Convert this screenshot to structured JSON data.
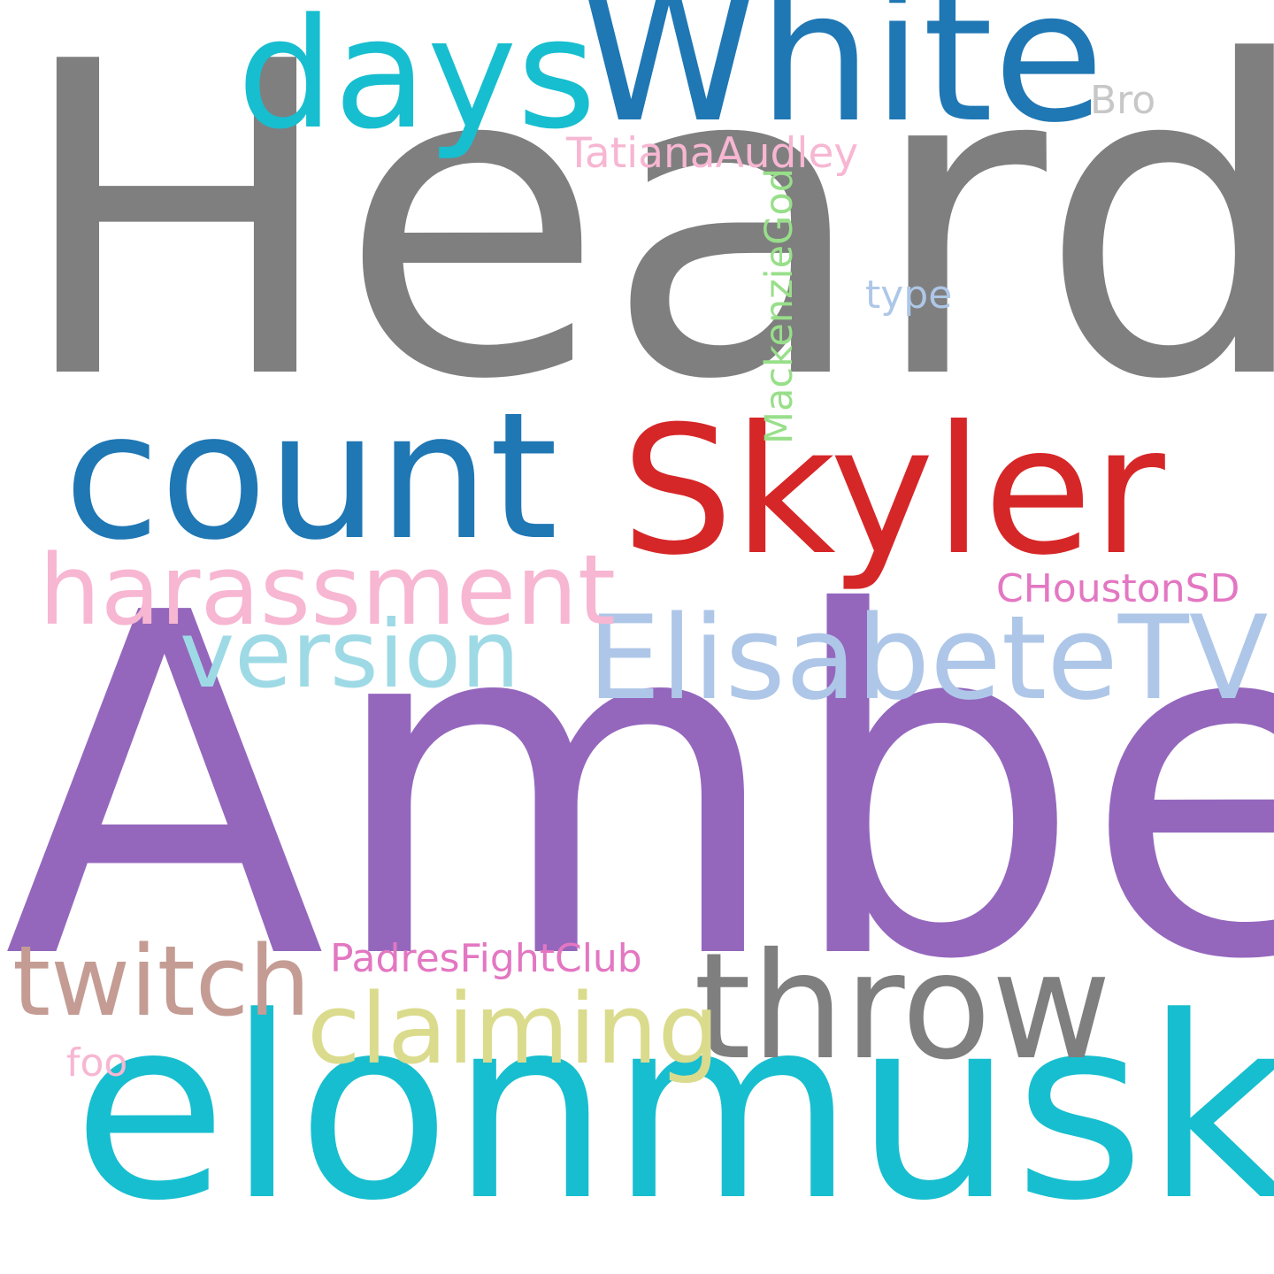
{
  "words": [
    {
      "key": "heard",
      "text": "Heard",
      "color": "#7f7f7f"
    },
    {
      "key": "amber",
      "text": "Amber",
      "color": "#9467bd"
    },
    {
      "key": "elonmusk",
      "text": "elonmusk",
      "color": "#17becf"
    },
    {
      "key": "white",
      "text": "White",
      "color": "#1f77b4"
    },
    {
      "key": "days",
      "text": "days",
      "color": "#17becf"
    },
    {
      "key": "count",
      "text": "count",
      "color": "#1f77b4"
    },
    {
      "key": "skyler",
      "text": "Skyler",
      "color": "#d62728"
    },
    {
      "key": "elisabetetv",
      "text": "ElisabeteTV",
      "color": "#aec7e8"
    },
    {
      "key": "harassment",
      "text": "harassment",
      "color": "#f7b6d2"
    },
    {
      "key": "version",
      "text": "version",
      "color": "#9edae5"
    },
    {
      "key": "throw",
      "text": "throw",
      "color": "#7f7f7f"
    },
    {
      "key": "twitch",
      "text": "twitch",
      "color": "#c49c94"
    },
    {
      "key": "claiming",
      "text": "claiming",
      "color": "#dbdb8d"
    },
    {
      "key": "tatianaaudley",
      "text": "TatianaAudley",
      "color": "#f7b6d2"
    },
    {
      "key": "mackenziegod",
      "text": "MackenzieGod",
      "color": "#98df8a"
    },
    {
      "key": "bro",
      "text": "Bro",
      "color": "#c7c7c7"
    },
    {
      "key": "type",
      "text": "type",
      "color": "#aec7e8"
    },
    {
      "key": "choustonsd",
      "text": "CHoustonSD",
      "color": "#e377c2"
    },
    {
      "key": "padresfightclub",
      "text": "PadresFightClub",
      "color": "#e377c2"
    },
    {
      "key": "foo",
      "text": "foo",
      "color": "#f7b6d2"
    }
  ]
}
